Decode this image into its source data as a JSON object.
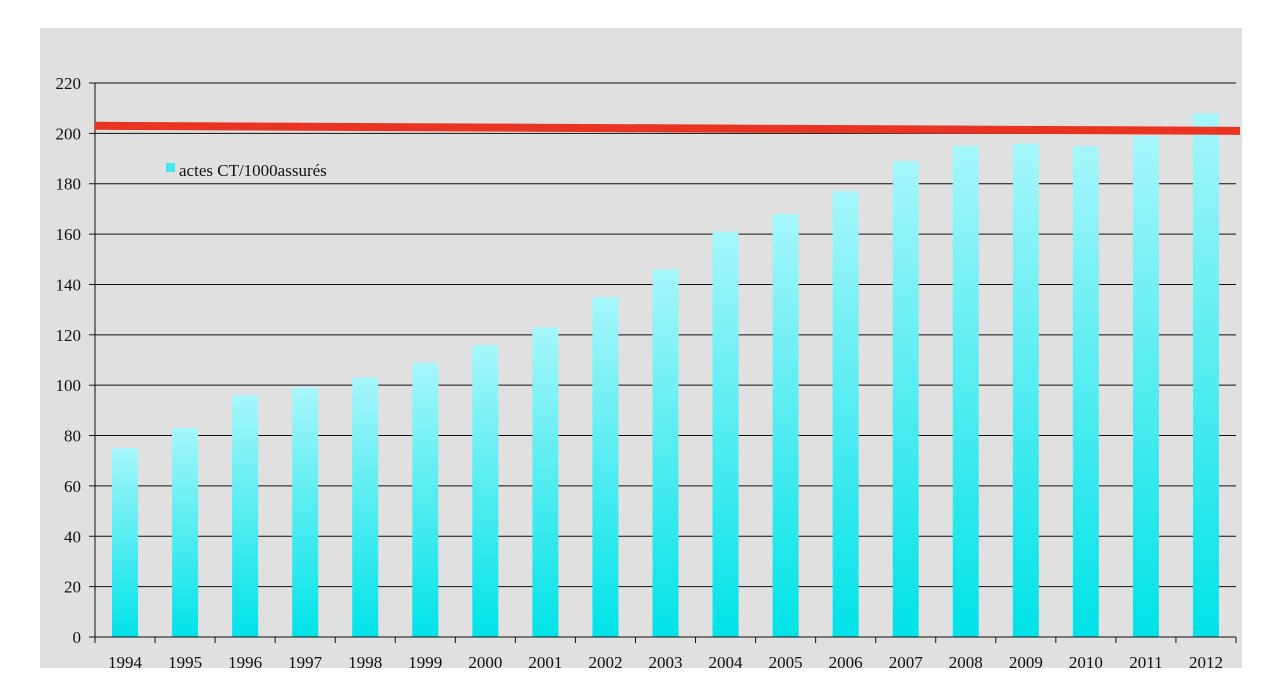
{
  "chart_data": {
    "type": "bar",
    "categories": [
      "1994",
      "1995",
      "1996",
      "1997",
      "1998",
      "1999",
      "2000",
      "2001",
      "2002",
      "2003",
      "2004",
      "2005",
      "2006",
      "2007",
      "2008",
      "2009",
      "2010",
      "2011",
      "2012"
    ],
    "series": [
      {
        "name": "actes CT/1000assurés",
        "values": [
          75,
          83,
          96,
          99,
          103,
          109,
          116,
          123,
          135,
          146,
          161,
          168,
          177,
          189,
          195,
          196,
          195,
          199,
          208
        ]
      }
    ],
    "reference_line": {
      "y_start": 203,
      "y_end": 201,
      "color": "#e83420"
    },
    "ylim": [
      0,
      220
    ],
    "y_ticks": [
      0,
      20,
      40,
      60,
      80,
      100,
      120,
      140,
      160,
      180,
      200,
      220
    ],
    "grid": true,
    "legend_position": "top-left",
    "title": "",
    "xlabel": "",
    "ylabel": "",
    "colors": {
      "bar_top": "#a6f6fa",
      "bar_bottom": "#00e3e8",
      "background": "#e0e0e0",
      "grid": "#111111"
    }
  }
}
